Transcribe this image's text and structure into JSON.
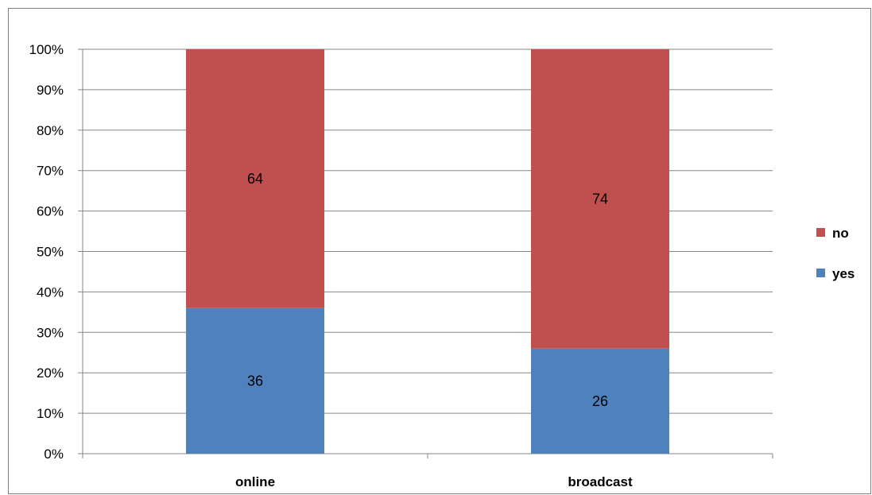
{
  "chart_data": {
    "type": "bar",
    "stacked": true,
    "percent": true,
    "categories": [
      "online",
      "broadcast"
    ],
    "series": [
      {
        "name": "yes",
        "values": [
          36,
          26
        ],
        "color": "#4f81bd"
      },
      {
        "name": "no",
        "values": [
          64,
          74
        ],
        "color": "#c0504d"
      }
    ],
    "ylim": [
      0,
      100
    ],
    "yticks": [
      "0%",
      "10%",
      "20%",
      "30%",
      "40%",
      "50%",
      "60%",
      "70%",
      "80%",
      "90%",
      "100%"
    ],
    "grid": true,
    "legend": "right",
    "legend_order": [
      "no",
      "yes"
    ]
  }
}
